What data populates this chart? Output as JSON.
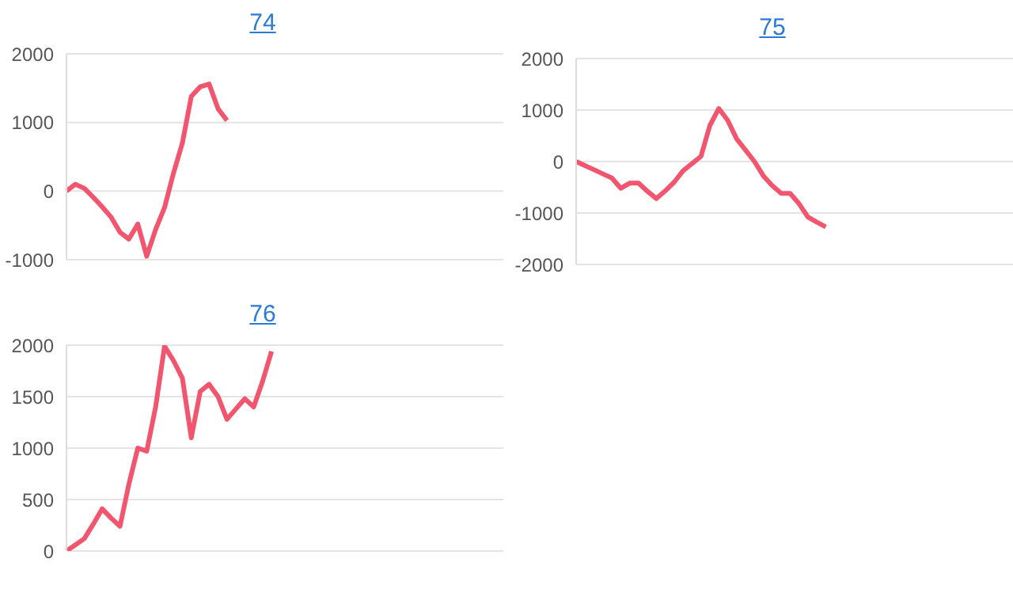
{
  "chart_data": [
    {
      "type": "line",
      "title": "74",
      "categories": [
        null,
        null,
        null,
        null,
        null,
        null,
        null,
        null,
        null,
        null,
        null,
        null,
        null,
        null,
        null,
        null,
        null,
        null,
        null,
        null,
        null,
        null,
        null,
        null,
        null,
        null,
        null,
        null,
        null,
        null,
        null,
        null,
        null,
        null,
        null,
        null,
        null,
        null,
        null,
        null,
        null,
        null,
        null,
        null,
        null,
        null,
        null,
        null,
        null,
        null
      ],
      "series": [
        {
          "color": "#f2566f",
          "values": [
            0,
            100,
            40,
            -90,
            -230,
            -380,
            -600,
            -700,
            -480,
            -950,
            -560,
            -240,
            260,
            700,
            1380,
            1520,
            1560,
            1200,
            1030,
            null,
            null,
            null,
            null,
            null,
            null,
            null,
            null,
            null,
            null,
            null,
            null,
            null,
            null,
            null,
            null,
            null,
            null,
            null,
            null,
            null,
            null,
            null,
            null,
            null,
            null,
            null,
            null,
            null,
            null,
            null
          ]
        }
      ],
      "ylim": [
        -1000,
        2000
      ],
      "yticks": [
        -1000,
        0,
        1000,
        2000
      ],
      "grid": "y",
      "tick_labels": "y",
      "marker": "none"
    },
    {
      "type": "line",
      "title": "75",
      "categories": [
        null,
        null,
        null,
        null,
        null,
        null,
        null,
        null,
        null,
        null,
        null,
        null,
        null,
        null,
        null,
        null,
        null,
        null,
        null,
        null,
        null,
        null,
        null,
        null,
        null,
        null,
        null,
        null,
        null,
        null,
        null,
        null,
        null,
        null,
        null,
        null,
        null,
        null,
        null,
        null,
        null,
        null,
        null,
        null,
        null,
        null,
        null,
        null,
        null,
        null
      ],
      "series": [
        {
          "color": "#f2566f",
          "values": [
            0,
            -80,
            -160,
            -240,
            -320,
            -520,
            -420,
            -420,
            -580,
            -720,
            -570,
            -400,
            -180,
            -40,
            100,
            700,
            1030,
            800,
            440,
            220,
            0,
            -280,
            -470,
            -620,
            -620,
            -820,
            -1080,
            -1180,
            -1270,
            null,
            null,
            null,
            null,
            null,
            null,
            null,
            null,
            null,
            null,
            null,
            null,
            null,
            null,
            null,
            null,
            null,
            null,
            null,
            null,
            null
          ]
        }
      ],
      "ylim": [
        -2000,
        2000
      ],
      "yticks": [
        -2000,
        -1000,
        0,
        1000,
        2000
      ],
      "grid": "y",
      "tick_labels": "y",
      "marker": "none"
    },
    {
      "type": "line",
      "title": "76",
      "categories": [
        null,
        null,
        null,
        null,
        null,
        null,
        null,
        null,
        null,
        null,
        null,
        null,
        null,
        null,
        null,
        null,
        null,
        null,
        null,
        null,
        null,
        null,
        null,
        null,
        null,
        null,
        null,
        null,
        null,
        null,
        null,
        null,
        null,
        null,
        null,
        null,
        null,
        null,
        null,
        null,
        null,
        null,
        null,
        null,
        null,
        null,
        null,
        null,
        null,
        null
      ],
      "series": [
        {
          "color": "#f2566f",
          "values": [
            0,
            60,
            120,
            260,
            410,
            320,
            240,
            650,
            1000,
            970,
            1400,
            1990,
            1850,
            1680,
            1100,
            1550,
            1620,
            1500,
            1280,
            1380,
            1480,
            1400,
            1650,
            1940,
            null,
            null,
            null,
            null,
            null,
            null,
            null,
            null,
            null,
            null,
            null,
            null,
            null,
            null,
            null,
            null,
            null,
            null,
            null,
            null,
            null,
            null,
            null,
            null,
            null,
            null
          ]
        }
      ],
      "ylim": [
        0,
        2000
      ],
      "yticks": [
        0,
        500,
        1000,
        1500,
        2000
      ],
      "grid": "y",
      "tick_labels": "y",
      "marker": "none"
    }
  ]
}
